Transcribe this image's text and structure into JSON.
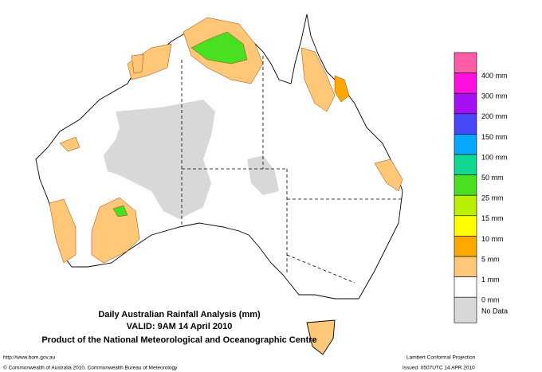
{
  "title": {
    "line1": "Daily Australian Rainfall Analysis (mm)",
    "line2": "VALID: 9AM 14 April 2010",
    "line3": "Product of the National Meteorological and Oceanographic Centre"
  },
  "legend": [
    {
      "label": "400 mm",
      "color": "#ff5ca8"
    },
    {
      "label": "300 mm",
      "color": "#ff10e0"
    },
    {
      "label": "200 mm",
      "color": "#a410f0"
    },
    {
      "label": "150 mm",
      "color": "#4848f8"
    },
    {
      "label": "100 mm",
      "color": "#08a8ff"
    },
    {
      "label": "50 mm",
      "color": "#10d890"
    },
    {
      "label": "25 mm",
      "color": "#48e020"
    },
    {
      "label": "15 mm",
      "color": "#b8f000"
    },
    {
      "label": "10 mm",
      "color": "#ffff00"
    },
    {
      "label": "5 mm",
      "color": "#ffa800"
    },
    {
      "label": "1 mm",
      "color": "#ffc878"
    },
    {
      "label": "0 mm",
      "color": "#ffffff"
    },
    {
      "label": "No Data",
      "color": "#d8d8d8"
    }
  ],
  "footer": {
    "url": "http://www.bom.gov.au",
    "copyright": "© Commonwealth of Australia 2010, Commonwealth Bureau of Meteorology",
    "projection": "Lambert Conformal Projection",
    "issued": "Issued: 0507UTC 14 APR 2010"
  }
}
